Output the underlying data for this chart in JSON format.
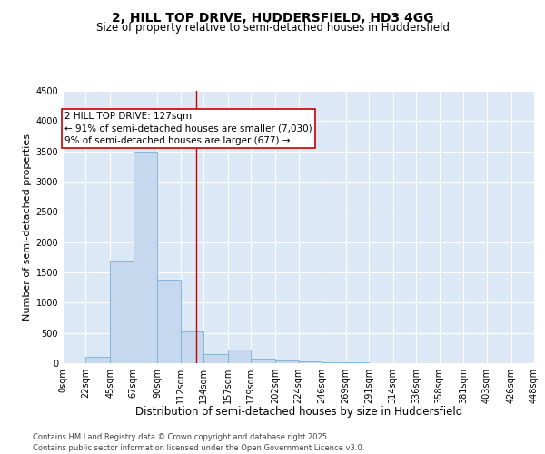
{
  "title": "2, HILL TOP DRIVE, HUDDERSFIELD, HD3 4GG",
  "subtitle": "Size of property relative to semi-detached houses in Huddersfield",
  "xlabel": "Distribution of semi-detached houses by size in Huddersfield",
  "ylabel": "Number of semi-detached properties",
  "property_size": 127,
  "property_line_color": "#cc0000",
  "annotation_text": "2 HILL TOP DRIVE: 127sqm\n← 91% of semi-detached houses are smaller (7,030)\n9% of semi-detached houses are larger (677) →",
  "annotation_box_color": "#cc0000",
  "bin_edges": [
    0,
    22,
    45,
    67,
    90,
    112,
    134,
    157,
    179,
    202,
    224,
    246,
    269,
    291,
    314,
    336,
    358,
    381,
    403,
    426,
    448
  ],
  "bin_counts": [
    0,
    100,
    1700,
    3500,
    1380,
    520,
    150,
    220,
    70,
    50,
    30,
    10,
    8,
    5,
    3,
    2,
    1,
    1,
    1,
    0
  ],
  "bar_facecolor": "#c5d8ee",
  "bar_edgecolor": "#7aafd4",
  "background_color": "#dce8f5",
  "grid_color": "#ffffff",
  "ylim": [
    0,
    4500
  ],
  "yticks": [
    0,
    500,
    1000,
    1500,
    2000,
    2500,
    3000,
    3500,
    4000,
    4500
  ],
  "footer_text": "Contains HM Land Registry data © Crown copyright and database right 2025.\nContains public sector information licensed under the Open Government Licence v3.0.",
  "title_fontsize": 10,
  "subtitle_fontsize": 8.5,
  "xlabel_fontsize": 8.5,
  "ylabel_fontsize": 8,
  "tick_fontsize": 7,
  "footer_fontsize": 6,
  "annot_fontsize": 7.5
}
